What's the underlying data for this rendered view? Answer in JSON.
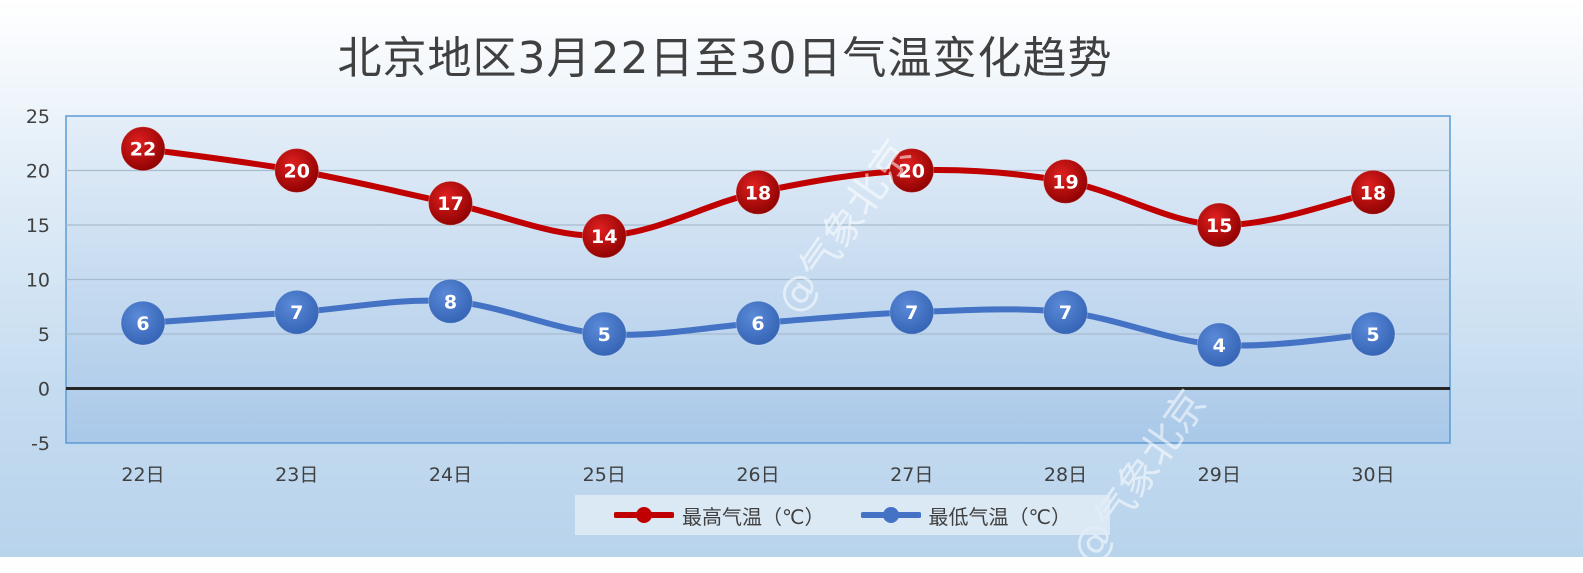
{
  "chart_data": {
    "type": "line",
    "title": "北京地区3月22日至30日气温变化趋势",
    "categories": [
      "22日",
      "23日",
      "24日",
      "25日",
      "26日",
      "27日",
      "28日",
      "29日",
      "30日"
    ],
    "series": [
      {
        "name": "最高气温（℃）",
        "color": "#c00000",
        "values": [
          22,
          20,
          17,
          14,
          18,
          20,
          19,
          15,
          18
        ]
      },
      {
        "name": "最低气温（℃）",
        "color": "#4472c4",
        "values": [
          6,
          7,
          8,
          5,
          6,
          7,
          7,
          4,
          5
        ]
      }
    ],
    "ylim": [
      -5,
      25
    ],
    "yticks": [
      25,
      20,
      15,
      10,
      5,
      0,
      -5
    ],
    "grid": true,
    "legend_position": "bottom",
    "smooth": true
  },
  "watermark": "@气象北京"
}
